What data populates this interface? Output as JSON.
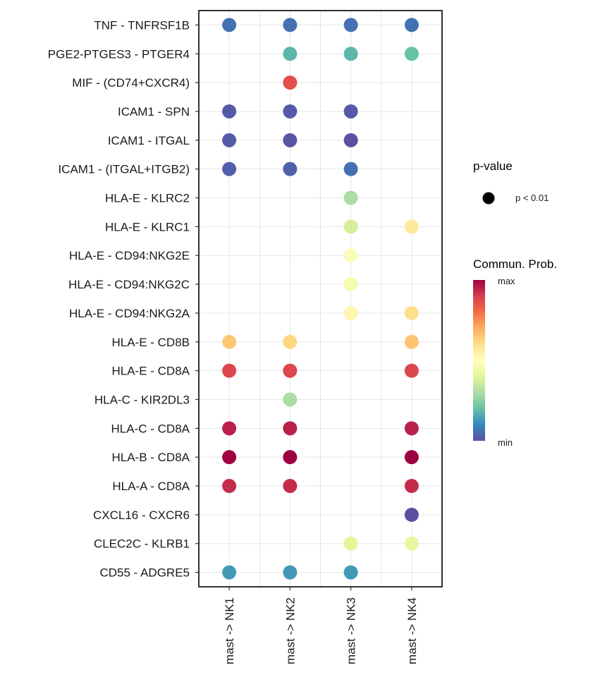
{
  "chart_data": {
    "type": "scatter",
    "title": "",
    "xlabel": "",
    "ylabel": "",
    "columns": [
      "mast -> NK1",
      "mast -> NK2",
      "mast -> NK3",
      "mast -> NK4"
    ],
    "rows": [
      "TNF - TNFRSF1B",
      "PGE2-PTGES3 - PTGER4",
      "MIF - (CD74+CXCR4)",
      "ICAM1 - SPN",
      "ICAM1 - ITGAL",
      "ICAM1 - (ITGAL+ITGB2)",
      "HLA-E - KLRC2",
      "HLA-E - KLRC1",
      "HLA-E - CD94:NKG2E",
      "HLA-E - CD94:NKG2C",
      "HLA-E - CD94:NKG2A",
      "HLA-E - CD8B",
      "HLA-E - CD8A",
      "HLA-C - KIR2DL3",
      "HLA-C - CD8A",
      "HLA-B - CD8A",
      "HLA-A - CD8A",
      "CXCL16 - CXCR6",
      "CLEC2C - KLRB1",
      "CD55 - ADGRE5"
    ],
    "points": [
      {
        "row": "TNF - TNFRSF1B",
        "col": "mast -> NK1",
        "prob": 0.06
      },
      {
        "row": "TNF - TNFRSF1B",
        "col": "mast -> NK2",
        "prob": 0.06
      },
      {
        "row": "TNF - TNFRSF1B",
        "col": "mast -> NK3",
        "prob": 0.06
      },
      {
        "row": "TNF - TNFRSF1B",
        "col": "mast -> NK4",
        "prob": 0.06
      },
      {
        "row": "PGE2-PTGES3 - PTGER4",
        "col": "mast -> NK2",
        "prob": 0.18
      },
      {
        "row": "PGE2-PTGES3 - PTGER4",
        "col": "mast -> NK3",
        "prob": 0.18
      },
      {
        "row": "PGE2-PTGES3 - PTGER4",
        "col": "mast -> NK4",
        "prob": 0.2
      },
      {
        "row": "MIF - (CD74+CXCR4)",
        "col": "mast -> NK2",
        "prob": 0.86
      },
      {
        "row": "ICAM1 - SPN",
        "col": "mast -> NK1",
        "prob": 0.02
      },
      {
        "row": "ICAM1 - SPN",
        "col": "mast -> NK2",
        "prob": 0.02
      },
      {
        "row": "ICAM1 - SPN",
        "col": "mast -> NK3",
        "prob": 0.02
      },
      {
        "row": "ICAM1 - ITGAL",
        "col": "mast -> NK1",
        "prob": 0.02
      },
      {
        "row": "ICAM1 - ITGAL",
        "col": "mast -> NK2",
        "prob": 0.01
      },
      {
        "row": "ICAM1 - ITGAL",
        "col": "mast -> NK3",
        "prob": 0.0
      },
      {
        "row": "ICAM1 - (ITGAL+ITGB2)",
        "col": "mast -> NK1",
        "prob": 0.03
      },
      {
        "row": "ICAM1 - (ITGAL+ITGB2)",
        "col": "mast -> NK2",
        "prob": 0.03
      },
      {
        "row": "ICAM1 - (ITGAL+ITGB2)",
        "col": "mast -> NK3",
        "prob": 0.06
      },
      {
        "row": "HLA-E - KLRC2",
        "col": "mast -> NK3",
        "prob": 0.3
      },
      {
        "row": "HLA-E - KLRC1",
        "col": "mast -> NK3",
        "prob": 0.37
      },
      {
        "row": "HLA-E - KLRC1",
        "col": "mast -> NK4",
        "prob": 0.57
      },
      {
        "row": "HLA-E - CD94:NKG2E",
        "col": "mast -> NK3",
        "prob": 0.48
      },
      {
        "row": "HLA-E - CD94:NKG2C",
        "col": "mast -> NK3",
        "prob": 0.46
      },
      {
        "row": "HLA-E - CD94:NKG2A",
        "col": "mast -> NK3",
        "prob": 0.53
      },
      {
        "row": "HLA-E - CD94:NKG2A",
        "col": "mast -> NK4",
        "prob": 0.6
      },
      {
        "row": "HLA-E - CD8B",
        "col": "mast -> NK1",
        "prob": 0.65
      },
      {
        "row": "HLA-E - CD8B",
        "col": "mast -> NK2",
        "prob": 0.62
      },
      {
        "row": "HLA-E - CD8B",
        "col": "mast -> NK4",
        "prob": 0.66
      },
      {
        "row": "HLA-E - CD8A",
        "col": "mast -> NK1",
        "prob": 0.88
      },
      {
        "row": "HLA-E - CD8A",
        "col": "mast -> NK2",
        "prob": 0.88
      },
      {
        "row": "HLA-E - CD8A",
        "col": "mast -> NK4",
        "prob": 0.88
      },
      {
        "row": "HLA-C - KIR2DL3",
        "col": "mast -> NK2",
        "prob": 0.3
      },
      {
        "row": "HLA-C - CD8A",
        "col": "mast -> NK1",
        "prob": 0.95
      },
      {
        "row": "HLA-C - CD8A",
        "col": "mast -> NK2",
        "prob": 0.95
      },
      {
        "row": "HLA-C - CD8A",
        "col": "mast -> NK4",
        "prob": 0.95
      },
      {
        "row": "HLA-B - CD8A",
        "col": "mast -> NK1",
        "prob": 1.0
      },
      {
        "row": "HLA-B - CD8A",
        "col": "mast -> NK2",
        "prob": 1.0
      },
      {
        "row": "HLA-B - CD8A",
        "col": "mast -> NK4",
        "prob": 1.0
      },
      {
        "row": "HLA-A - CD8A",
        "col": "mast -> NK1",
        "prob": 0.93
      },
      {
        "row": "HLA-A - CD8A",
        "col": "mast -> NK2",
        "prob": 0.93
      },
      {
        "row": "HLA-A - CD8A",
        "col": "mast -> NK4",
        "prob": 0.93
      },
      {
        "row": "CXCL16 - CXCR6",
        "col": "mast -> NK4",
        "prob": 0.0
      },
      {
        "row": "CLEC2C - KLRB1",
        "col": "mast -> NK3",
        "prob": 0.4
      },
      {
        "row": "CLEC2C - KLRB1",
        "col": "mast -> NK4",
        "prob": 0.42
      },
      {
        "row": "CD55 - ADGRE5",
        "col": "mast -> NK1",
        "prob": 0.13
      },
      {
        "row": "CD55 - ADGRE5",
        "col": "mast -> NK2",
        "prob": 0.13
      },
      {
        "row": "CD55 - ADGRE5",
        "col": "mast -> NK3",
        "prob": 0.13
      }
    ],
    "grid": true,
    "legend": {
      "placement": "right",
      "size_title": "p-value",
      "size_label": "p < 0.01",
      "color_title": "Commun. Prob.",
      "color_max_label": "max",
      "color_min_label": "min",
      "colormap": "Spectral",
      "color_stops": [
        "#5E4FA2",
        "#3288BD",
        "#66C2A5",
        "#ABDDA4",
        "#E6F598",
        "#FFFFBF",
        "#FEE08B",
        "#FDAE61",
        "#F46D43",
        "#D53E4F",
        "#9E0142"
      ]
    },
    "colors": {
      "point_size_legend": "#000000",
      "grid": "#e5e5e5",
      "border": "#000000"
    }
  }
}
